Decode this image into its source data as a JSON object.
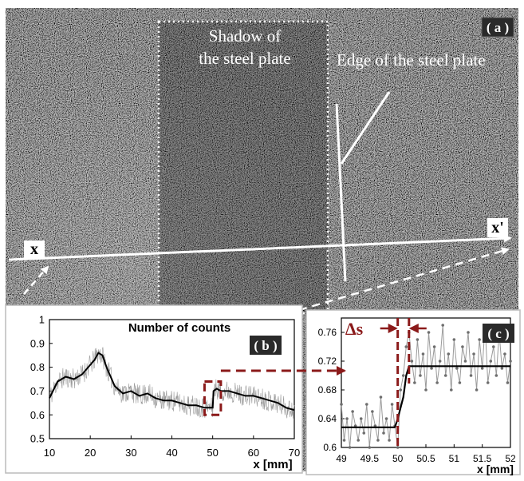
{
  "panel_a": {
    "label": "( a )",
    "shadow_label_line1": "Shadow of",
    "shadow_label_line2": "the steel plate",
    "edge_label": "Edge of  the steel plate",
    "axis_x": "x",
    "axis_x_prime": "x'"
  },
  "colors": {
    "accent": "#8b1a1a",
    "background": "#000000",
    "line": "#000000",
    "noise": "#9a9a9a"
  },
  "chart_data": [
    {
      "type": "line",
      "panel": "( b )",
      "title": "Number of counts",
      "xlabel": "x [mm]",
      "ylabel": "",
      "xlim": [
        10,
        70
      ],
      "ylim": [
        0.5,
        1.0
      ],
      "x_ticks": [
        "10",
        "20",
        "30",
        "40",
        "50",
        "60",
        "70"
      ],
      "y_ticks": [
        "0.5",
        "0.6",
        "0.7",
        "0.8",
        "0.9",
        "1"
      ],
      "series": [
        {
          "style": "smoothed",
          "x": [
            10,
            12,
            14,
            16,
            18,
            20,
            21,
            22,
            23,
            24,
            26,
            28,
            30,
            32,
            34,
            36,
            38,
            40,
            42,
            44,
            46,
            48,
            49,
            50,
            50.2,
            51,
            52,
            54,
            56,
            58,
            60,
            62,
            64,
            66,
            68,
            70
          ],
          "y": [
            0.67,
            0.74,
            0.76,
            0.75,
            0.77,
            0.81,
            0.83,
            0.86,
            0.85,
            0.8,
            0.72,
            0.69,
            0.7,
            0.68,
            0.69,
            0.67,
            0.66,
            0.66,
            0.65,
            0.64,
            0.64,
            0.63,
            0.63,
            0.63,
            0.7,
            0.71,
            0.7,
            0.7,
            0.69,
            0.68,
            0.68,
            0.67,
            0.66,
            0.65,
            0.63,
            0.62
          ]
        }
      ],
      "annotations": [
        {
          "type": "dashed-box",
          "x": [
            48,
            52
          ],
          "y": [
            0.6,
            0.74
          ]
        }
      ]
    },
    {
      "type": "line",
      "panel": "( c )",
      "title": "",
      "xlabel": "x [mm]",
      "ylabel": "",
      "xlim": [
        49,
        52
      ],
      "ylim": [
        0.6,
        0.78
      ],
      "x_ticks": [
        "49",
        "49.5",
        "50",
        "50.5",
        "51",
        "51.5",
        "52"
      ],
      "y_ticks": [
        "0.6",
        "0.64",
        "0.68",
        "0.72",
        "0.76"
      ],
      "annotation_label": "Δs",
      "series": [
        {
          "style": "step-fit",
          "x": [
            49,
            49.95,
            50.0,
            50.1,
            50.15,
            50.2,
            52
          ],
          "y": [
            0.628,
            0.628,
            0.64,
            0.67,
            0.7,
            0.713,
            0.713
          ]
        },
        {
          "style": "noisy-points",
          "x": [
            49.0,
            49.05,
            49.1,
            49.15,
            49.2,
            49.25,
            49.3,
            49.35,
            49.4,
            49.45,
            49.5,
            49.55,
            49.6,
            49.65,
            49.7,
            49.75,
            49.8,
            49.85,
            49.9,
            49.95,
            50.0,
            50.05,
            50.1,
            50.15,
            50.2,
            50.25,
            50.3,
            50.35,
            50.4,
            50.45,
            50.5,
            50.55,
            50.6,
            50.65,
            50.7,
            50.75,
            50.8,
            50.85,
            50.9,
            50.95,
            51.0,
            51.05,
            51.1,
            51.15,
            51.2,
            51.25,
            51.3,
            51.35,
            51.4,
            51.45,
            51.5,
            51.55,
            51.6,
            51.65,
            51.7,
            51.75,
            51.8,
            51.85,
            51.9,
            51.95,
            52.0
          ],
          "y": [
            0.66,
            0.61,
            0.64,
            0.6,
            0.65,
            0.63,
            0.61,
            0.64,
            0.62,
            0.66,
            0.6,
            0.65,
            0.63,
            0.61,
            0.67,
            0.62,
            0.64,
            0.61,
            0.66,
            0.63,
            0.6,
            0.68,
            0.7,
            0.74,
            0.76,
            0.72,
            0.69,
            0.75,
            0.7,
            0.73,
            0.68,
            0.76,
            0.71,
            0.74,
            0.69,
            0.72,
            0.77,
            0.7,
            0.73,
            0.68,
            0.75,
            0.71,
            0.69,
            0.74,
            0.72,
            0.76,
            0.7,
            0.73,
            0.68,
            0.75,
            0.71,
            0.77,
            0.69,
            0.72,
            0.74,
            0.7,
            0.76,
            0.71,
            0.73,
            0.69,
            0.72
          ]
        }
      ]
    }
  ]
}
